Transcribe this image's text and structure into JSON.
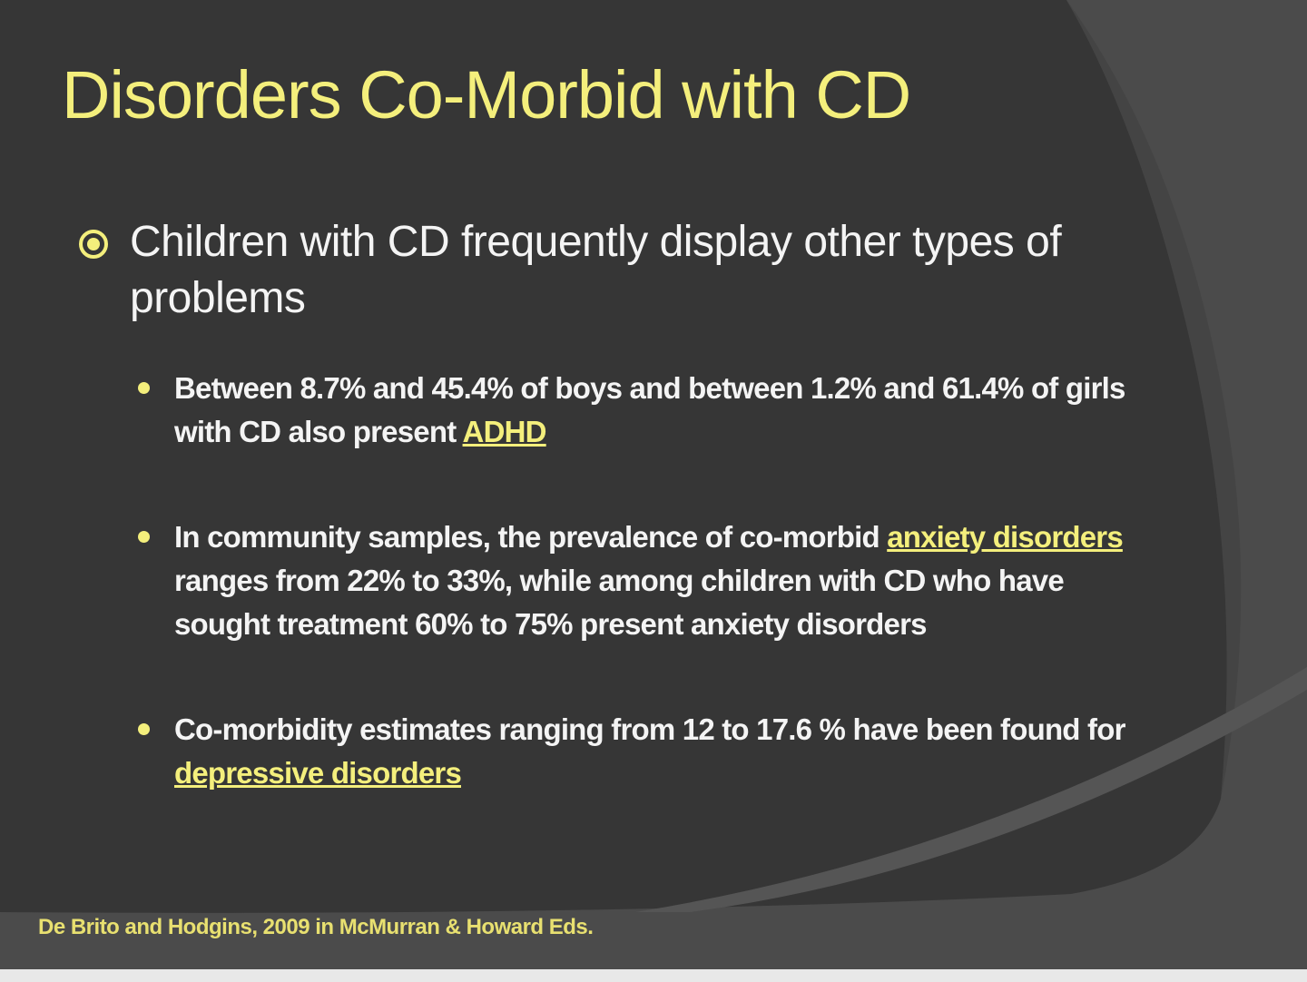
{
  "title": "Disorders Co-Morbid with CD",
  "bullets": [
    {
      "text": "Children with CD frequently display other types of problems",
      "items": [
        {
          "before": "Between 8.7% and 45.4% of boys and between 1.2% and 61.4% of girls with CD also present ",
          "link": "ADHD"
        },
        {
          "before": "In community samples, the prevalence of co-morbid ",
          "link": "anxiety disorders ",
          "after": "ranges from 22% to 33%, while among children with CD who have sought treatment 60% to 75% present anxiety disorders"
        },
        {
          "before": "Co-morbidity estimates ranging from 12 to 17.6 % have been found for ",
          "link": "depressive disorders"
        }
      ]
    }
  ],
  "citation": "De Brito and Hodgins, 2009 in McMurran & Howard Eds."
}
